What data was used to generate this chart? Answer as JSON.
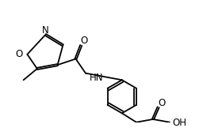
{
  "bg_color": "#ffffff",
  "line_color": "#000000",
  "line_width": 1.3,
  "font_size": 8.5,
  "fig_width": 2.56,
  "fig_height": 1.62,
  "dpi": 100,
  "xlim": [
    0,
    256
  ],
  "ylim": [
    0,
    162
  ]
}
